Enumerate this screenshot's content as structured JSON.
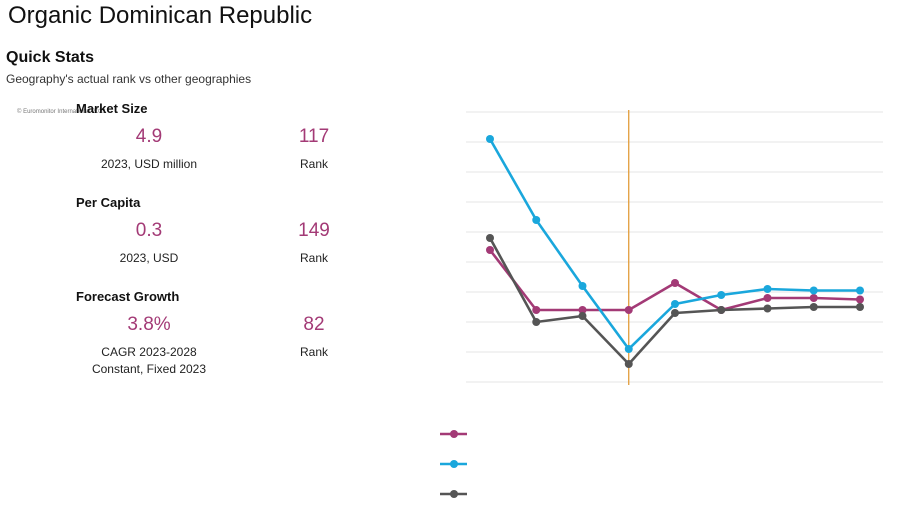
{
  "page": {
    "title": "Organic Dominican Republic",
    "quick_stats_title": "Quick Stats",
    "quick_stats_subtitle": "Geography's actual rank vs other geographies",
    "copyright": "© Euromonitor International 2023"
  },
  "stats": [
    {
      "heading": "Market Size",
      "value": "4.9",
      "value_label": "2023, USD million",
      "rank": "117",
      "rank_label": "Rank"
    },
    {
      "heading": "Per Capita",
      "value": "0.3",
      "value_label": "2023,  USD",
      "rank": "149",
      "rank_label": "Rank"
    },
    {
      "heading": "Forecast Growth",
      "value": "3.8%",
      "value_label": "CAGR 2023-2028",
      "value_label2": "Constant, Fixed 2023",
      "rank": "82",
      "rank_label": "Rank"
    }
  ],
  "chart_data": {
    "type": "line",
    "x": [
      1,
      2,
      3,
      4,
      5,
      6,
      7,
      8,
      9
    ],
    "ylim": [
      0,
      9
    ],
    "highlight_x": 4,
    "series": [
      {
        "name": "",
        "color": "#a33a76",
        "values": [
          4.4,
          2.4,
          2.4,
          2.4,
          3.3,
          2.4,
          2.8,
          2.8,
          2.75
        ]
      },
      {
        "name": "",
        "color": "#1aa7dc",
        "values": [
          8.1,
          5.4,
          3.2,
          1.1,
          2.6,
          2.9,
          3.1,
          3.05,
          3.05
        ]
      },
      {
        "name": "",
        "color": "#555555",
        "values": [
          4.8,
          2.0,
          2.2,
          0.6,
          2.3,
          2.4,
          2.45,
          2.5,
          2.5
        ]
      }
    ],
    "accent_line_color": "#e0952b",
    "gridline_color": "#e6e6e6"
  }
}
